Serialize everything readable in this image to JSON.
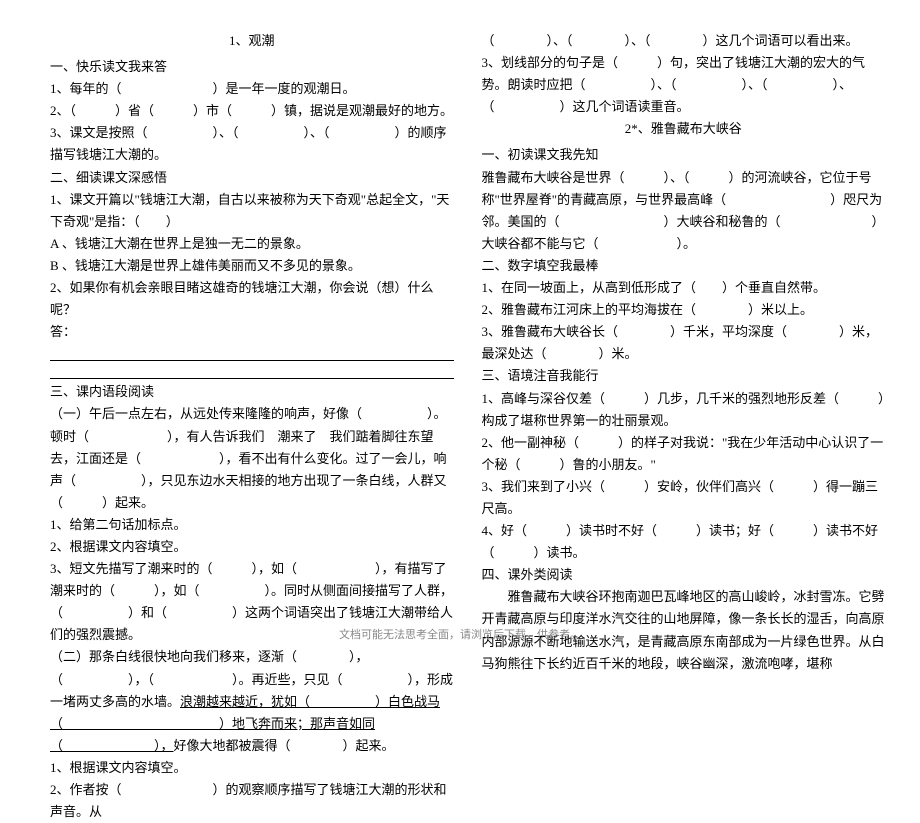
{
  "left": {
    "title": "1、观潮",
    "section1_header": "一、快乐读文我来答",
    "l1": "1、每年的（　　　　　　　）是一年一度的观潮日。",
    "l2": "2、（　　　）省（　　　）市（　　　）镇，据说是观潮最好的地方。",
    "l3": "3、课文是按照（　　　　　）、（　　　　　）、（　　　　　）的顺序描写钱塘江大潮的。",
    "section2_header": "二、细读课文深感悟",
    "l4": "1、课文开篇以\"钱塘江大潮，自古以来被称为天下奇观\"总起全文，\"天下奇观\"是指：（　　）",
    "l5": "A 、钱塘江大潮在世界上是独一无二的景象。",
    "l6": "B 、钱塘江大潮是世界上雄伟美丽而又不多见的景象。",
    "l7": "2、如果你有机会亲眼目睹这雄奇的钱塘江大潮，你会说（想）什么呢？",
    "l8": "答：",
    "section3_header": "三、课内语段阅读",
    "l9": "（一）午后一点左右，从远处传来隆隆的响声，好像（　　　　　）。顿时（　　　　　　），有人告诉我们　潮来了　我们踮着脚往东望去，江面还是（　　　　　　），看不出有什么变化。过了一会儿，响声（　　　　　），只见东边水天相接的地方出现了一条白线，人群又（　　　）起来。",
    "l10": "1、给第二句话加标点。",
    "l11": "2、根据课文内容填空。",
    "l12": "3、短文先描写了潮来时的（　　　），如（　　　　　　），有描写了潮来时的（　　　），如（　　　　　）。同时从侧面间接描写了人群，（　　　　　）和（　　　　　）这两个词语突出了钱塘江大潮带给人们的强烈震撼。",
    "l13": "（二）那条白线很快地向我们移来，逐渐（　　　　），（　　　　　），（　　　　　　）。再近些，只见（　　　　　），形成一堵两丈多高的水墙。",
    "l13u": "浪潮越来越近，犹如（　　　　　）白色战马（　　　　　　　　　　　　）地飞奔而来；那声音如同（　　　　　　　），",
    "l13b": "好像大地都被震得（　　　　）起来。",
    "l14": "1、根据课文内容填空。",
    "l15": "2、作者按（　　　　　　　）的观察顺序描写了钱塘江大潮的形状和声音。从"
  },
  "right": {
    "r1": "（　　　　）、（　　　　）、（　　　　）这几个词语可以看出来。",
    "r2": "3、划线部分的句子是（　　　）句，突出了钱塘江大潮的宏大的气势。朗读时应把（　　　　　）、（　　　　　）、（　　　　　）、（　　　　　）这几个词语读重音。",
    "title2": "2*、雅鲁藏布大峡谷",
    "section1_header": "一、初读课文我先知",
    "r3": "雅鲁藏布大峡谷是世界（　　　）、（　　　）的河流峡谷，它位于号称\"世界屋脊\"的青藏高原，与世界最高峰（　　　　　　　　）咫尺为邻。美国的（　　　　　　　　）大峡谷和秘鲁的（　　　　　　　）大峡谷都不能与它（　　　　　　）。",
    "section2_header": "二、数字填空我最棒",
    "r4": "1、在同一坡面上，从高到低形成了（　　）个垂直自然带。",
    "r5": "2、雅鲁藏布江河床上的平均海拔在（　　　　）米以上。",
    "r6": "3、雅鲁藏布大峡谷长（　　　　）千米，平均深度（　　　　）米，最深处达（　　　　）米。",
    "section3_header": "三、语境注音我能行",
    "r7": "1、高峰与深谷仅差（　　　）几步，几千米的强烈地形反差（　　　）构成了堪称世界第一的壮丽景观。",
    "r8": "2、他一副神秘（　　　）的样子对我说：\"我在少年活动中心认识了一个秘（　　　）鲁的小朋友。\"",
    "r9": "3、我们来到了小兴（　　　）安岭，伙伴们高兴（　　　）得一蹦三尺高。",
    "r10": "4、好（　　　）读书时不好（　　　）读书；好（　　　）读书不好（　　　）读书。",
    "section4_header": "四、课外类阅读",
    "r11": "　　雅鲁藏布大峡谷环抱南迦巴瓦峰地区的高山峻岭，冰封雪冻。它劈开青藏高原与印度洋水汽交往的山地屏障，像一条长长的湿舌，向高原内部源源不断地输送水汽，是青藏高原东南部成为一片绿色世界。从白马狗熊往下长约近百千米的地段，峡谷幽深，激流咆哮，堪称"
  },
  "footer": "文档可能无法思考全面，请浏览后下载，供参考。"
}
